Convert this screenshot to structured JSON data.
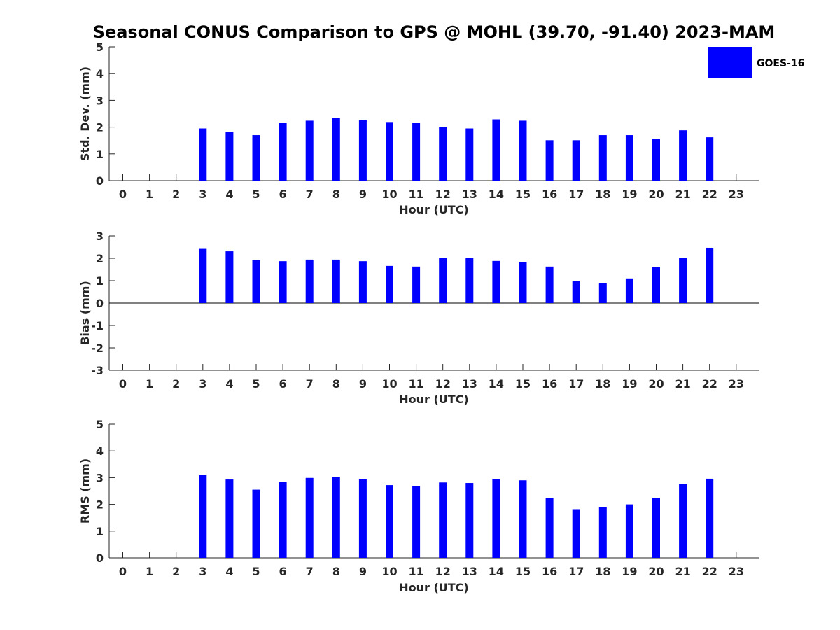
{
  "chart_data": {
    "type": "bar",
    "title": "Seasonal CONUS Comparison to GPS @ MOHL (39.70, -91.40) 2023-MAM",
    "bar_color": "#0000ff",
    "legend": {
      "label": "GOES-16",
      "placement": "top-right"
    },
    "categories": [
      "0",
      "1",
      "2",
      "3",
      "4",
      "5",
      "6",
      "7",
      "8",
      "9",
      "10",
      "11",
      "12",
      "13",
      "14",
      "15",
      "16",
      "17",
      "18",
      "19",
      "20",
      "21",
      "22",
      "23"
    ],
    "panels": [
      {
        "id": "stddev",
        "ylabel": "Std. Dev. (mm)",
        "xlabel": "Hour (UTC)",
        "ylim": [
          0,
          5
        ],
        "yticks": [
          "0",
          "1",
          "2",
          "3",
          "4",
          "5"
        ],
        "values": [
          null,
          null,
          null,
          1.95,
          1.82,
          1.7,
          2.16,
          2.24,
          2.35,
          2.26,
          2.19,
          2.16,
          2.01,
          1.95,
          2.29,
          2.24,
          1.51,
          1.51,
          1.7,
          1.7,
          1.57,
          1.88,
          1.62,
          null
        ]
      },
      {
        "id": "bias",
        "ylabel": "Bias (mm)",
        "xlabel": "Hour (UTC)",
        "ylim": [
          -3,
          3
        ],
        "yticks": [
          "-3",
          "-2",
          "-1",
          "0",
          "1",
          "2",
          "3"
        ],
        "values": [
          null,
          null,
          null,
          2.42,
          2.31,
          1.91,
          1.87,
          1.94,
          1.94,
          1.87,
          1.66,
          1.63,
          2.0,
          2.0,
          1.88,
          1.84,
          1.63,
          1.0,
          0.88,
          1.1,
          1.6,
          2.03,
          2.47,
          null
        ]
      },
      {
        "id": "rms",
        "ylabel": "RMS (mm)",
        "xlabel": "Hour (UTC)",
        "ylim": [
          0,
          5
        ],
        "yticks": [
          "0",
          "1",
          "2",
          "3",
          "4",
          "5"
        ],
        "values": [
          null,
          null,
          null,
          3.09,
          2.93,
          2.55,
          2.85,
          2.99,
          3.03,
          2.95,
          2.72,
          2.69,
          2.82,
          2.8,
          2.95,
          2.9,
          2.23,
          1.82,
          1.9,
          2.0,
          2.23,
          2.75,
          2.96,
          null
        ]
      }
    ]
  }
}
